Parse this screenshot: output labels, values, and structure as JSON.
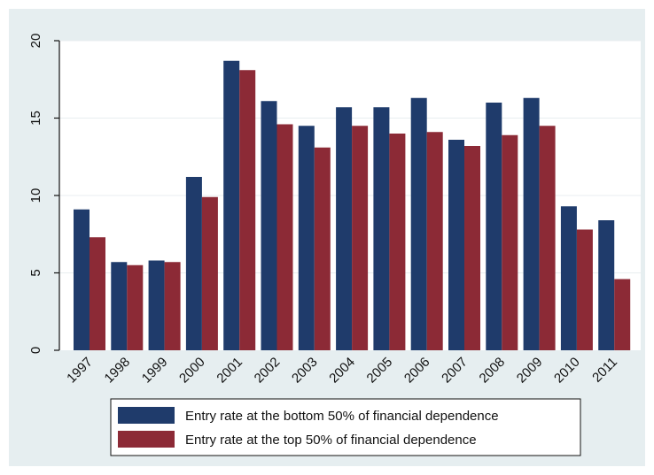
{
  "chart_data": {
    "type": "bar",
    "title": "",
    "xlabel": "",
    "ylabel": "",
    "categories": [
      "1997",
      "1998",
      "1999",
      "2000",
      "2001",
      "2002",
      "2003",
      "2004",
      "2005",
      "2006",
      "2007",
      "2008",
      "2009",
      "2010",
      "2011"
    ],
    "series": [
      {
        "name": "Entry rate at the bottom 50% of financial dependence",
        "color": "#1f3b6b",
        "values": [
          9.1,
          5.7,
          5.8,
          11.2,
          18.7,
          16.1,
          14.5,
          15.7,
          15.7,
          16.3,
          13.6,
          16.0,
          16.3,
          9.3,
          8.4
        ]
      },
      {
        "name": "Entry rate at the top 50% of financial dependence",
        "color": "#8c2a36",
        "values": [
          7.3,
          5.5,
          5.7,
          9.9,
          18.1,
          14.6,
          13.1,
          14.5,
          14.0,
          14.1,
          13.2,
          13.9,
          14.5,
          7.8,
          4.6
        ]
      }
    ],
    "ylim": [
      0,
      20
    ],
    "yticks": [
      0,
      5,
      10,
      15,
      20
    ],
    "grid": true,
    "legend_position": "bottom",
    "colors": {
      "background": "#e6eef0",
      "plot_background": "#ffffff",
      "grid": "#e8eef0"
    }
  }
}
